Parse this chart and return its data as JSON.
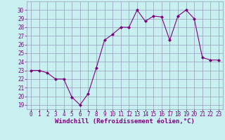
{
  "x": [
    0,
    1,
    2,
    3,
    4,
    5,
    6,
    7,
    8,
    9,
    10,
    11,
    12,
    13,
    14,
    15,
    16,
    17,
    18,
    19,
    20,
    21,
    22,
    23
  ],
  "y": [
    23.0,
    23.0,
    22.7,
    22.0,
    22.0,
    19.9,
    19.0,
    20.3,
    23.3,
    26.5,
    27.2,
    28.0,
    28.0,
    30.0,
    28.7,
    29.3,
    29.2,
    26.5,
    29.3,
    30.0,
    29.0,
    24.5,
    24.2,
    24.2
  ],
  "line_color": "#800080",
  "marker": "D",
  "marker_size": 2.0,
  "bg_color": "#c8f0f0",
  "grid_color": "#9999bb",
  "xlabel": "Windchill (Refroidissement éolien,°C)",
  "xlabel_color": "#800080",
  "ylabel_ticks": [
    19,
    20,
    21,
    22,
    23,
    24,
    25,
    26,
    27,
    28,
    29,
    30
  ],
  "xtick_labels": [
    "0",
    "1",
    "2",
    "3",
    "4",
    "5",
    "6",
    "7",
    "8",
    "9",
    "10",
    "11",
    "12",
    "13",
    "14",
    "15",
    "16",
    "17",
    "18",
    "19",
    "20",
    "21",
    "22",
    "23"
  ],
  "ylim": [
    18.5,
    31.0
  ],
  "xlim": [
    -0.5,
    23.5
  ],
  "tick_color": "#800080",
  "tick_fontsize": 5.5,
  "xlabel_fontsize": 6.5,
  "linewidth": 0.8
}
